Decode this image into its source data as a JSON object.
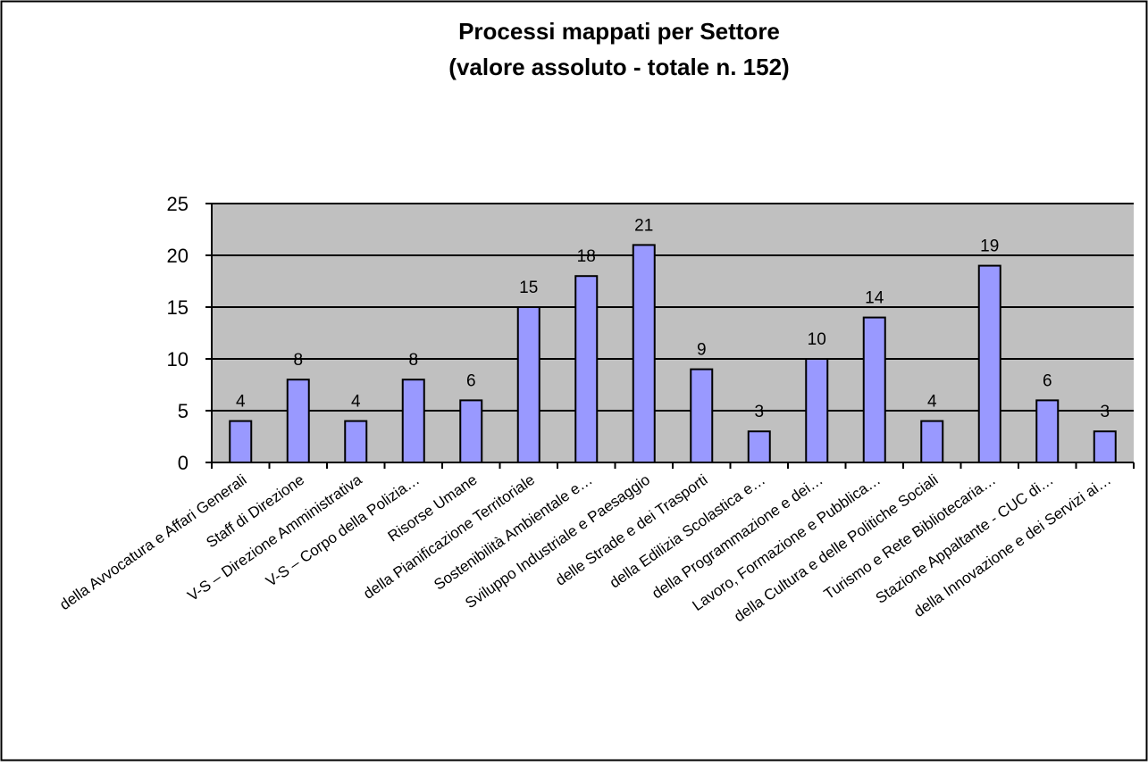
{
  "chart_data": {
    "type": "bar",
    "title": "Processi mappati per Settore",
    "subtitle": "(valore assoluto - totale n. 152)",
    "xlabel": "",
    "ylabel": "",
    "ylim": [
      0,
      25
    ],
    "yticks": [
      0,
      5,
      10,
      15,
      20,
      25
    ],
    "grid": true,
    "legend": "none",
    "categories": [
      "della Avvocatura e Affari Generali",
      "Staff di Direzione",
      "V-S – Direzione Amministrativa",
      "V-S – Corpo della Polizia…",
      "Risorse Umane",
      "della Pianificazione Territoriale",
      "Sostenibilità Ambientale e…",
      "Sviluppo Industriale e Paesaggio",
      "delle Strade e dei Trasporti",
      "della Edilizia Scolastica e…",
      "della Programmazione e dei…",
      "Lavoro, Formazione e Pubblica…",
      "della Cultura e delle Politiche Sociali",
      "Turismo e Rete Bibliotecaria…",
      "Stazione Appaltante - CUC di…",
      "della Innovazione e dei Servizi ai…"
    ],
    "values": [
      4,
      8,
      4,
      8,
      6,
      15,
      18,
      21,
      9,
      3,
      10,
      14,
      4,
      19,
      6,
      3
    ]
  },
  "colors": {
    "bar_fill": "#9999ff",
    "bar_stroke": "#000000",
    "plot_background": "#c0c0c0",
    "gridline": "#000000",
    "frame": "#000000"
  }
}
